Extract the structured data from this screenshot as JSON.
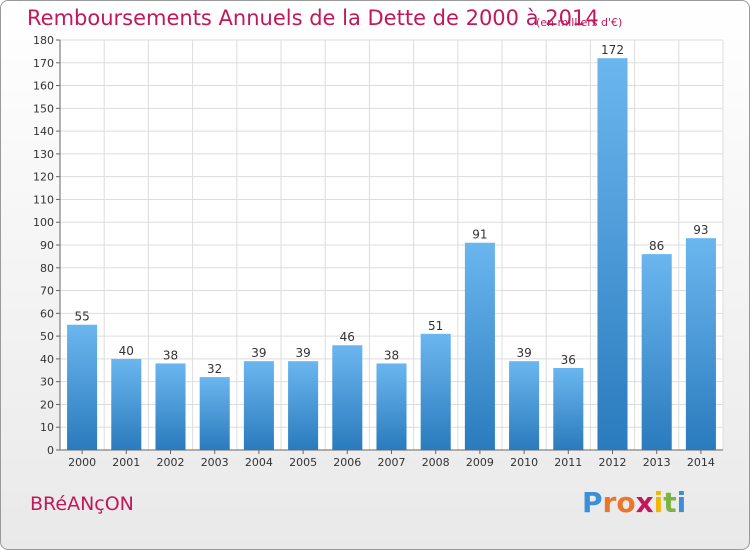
{
  "header": {
    "title": "Remboursements Annuels de la Dette de 2000 à 2014",
    "unit": "(en milliers d'€)"
  },
  "footer": {
    "commune": "BRéANçON",
    "logo": "Proxiti"
  },
  "colors": {
    "accent": "#c2185b",
    "bar_light": "#6bb6ef",
    "bar_dark": "#2a7bbd"
  },
  "chart_data": {
    "type": "bar",
    "title": "Remboursements Annuels de la Dette de 2000 à 2014",
    "ylabel": "(en milliers d'€)",
    "xlabel": "",
    "categories": [
      "2000",
      "2001",
      "2002",
      "2003",
      "2004",
      "2005",
      "2006",
      "2007",
      "2008",
      "2009",
      "2010",
      "2011",
      "2012",
      "2013",
      "2014"
    ],
    "values": [
      55,
      40,
      38,
      32,
      39,
      39,
      46,
      38,
      51,
      91,
      39,
      36,
      172,
      86,
      93
    ],
    "ylim": [
      0,
      180
    ],
    "yticks": [
      0,
      10,
      20,
      30,
      40,
      50,
      60,
      70,
      80,
      90,
      100,
      110,
      120,
      130,
      140,
      150,
      160,
      170,
      180
    ],
    "grid": true
  }
}
